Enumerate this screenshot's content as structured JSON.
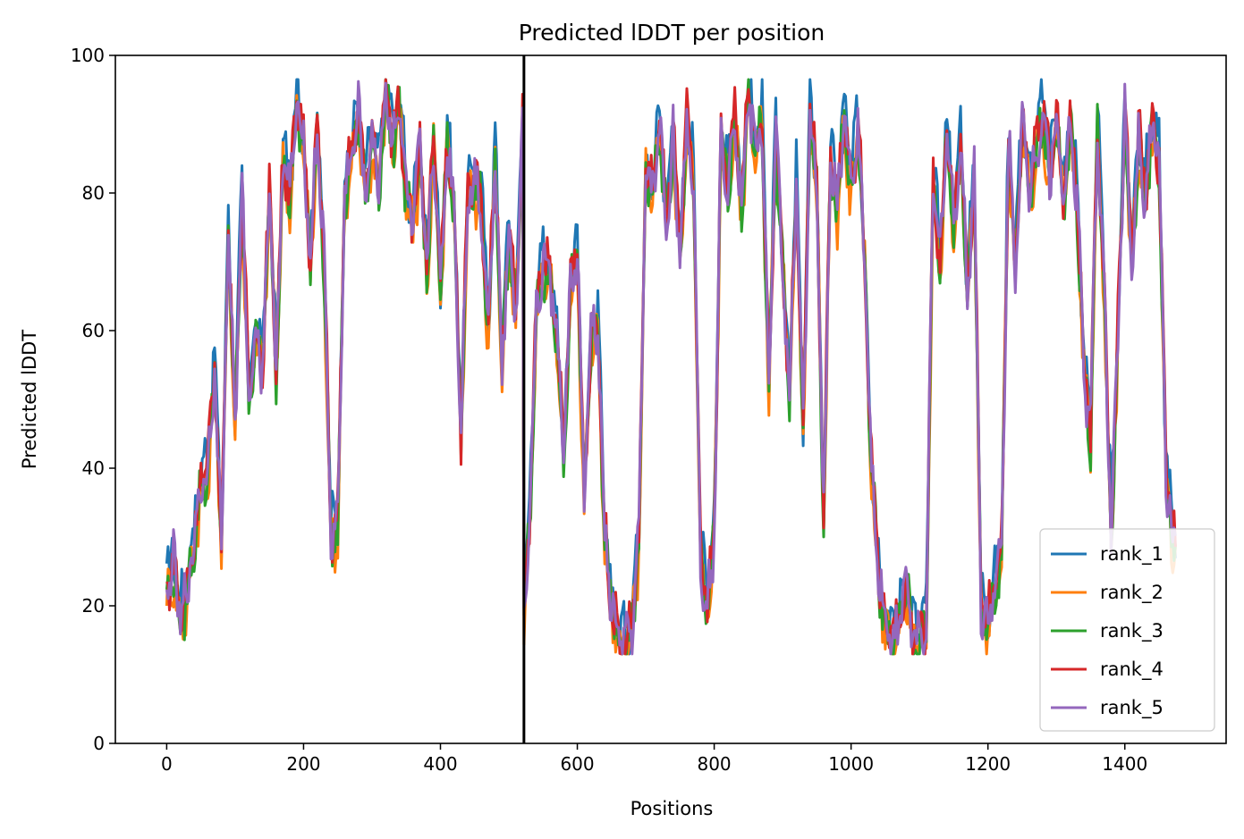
{
  "chart_data": {
    "type": "line",
    "title": "Predicted lDDT per position",
    "xlabel": "Positions",
    "ylabel": "Predicted lDDT",
    "xlim": [
      -75,
      1548
    ],
    "ylim": [
      0,
      100
    ],
    "xticks": [
      0,
      200,
      400,
      600,
      800,
      1000,
      1200,
      1400
    ],
    "yticks": [
      0,
      20,
      40,
      60,
      80,
      100
    ],
    "grid": false,
    "legend_position": "lower-right",
    "chain_boundary_x": 522,
    "series": [
      {
        "name": "rank_1",
        "color": "#1f77b4",
        "offset": 1.8
      },
      {
        "name": "rank_2",
        "color": "#ff7f0e",
        "offset": -1.6
      },
      {
        "name": "rank_3",
        "color": "#2ca02c",
        "offset": -0.8
      },
      {
        "name": "rank_4",
        "color": "#d62728",
        "offset": 0.6
      },
      {
        "name": "rank_5",
        "color": "#9467bd",
        "offset": 0.0
      }
    ],
    "profile_x": [
      0,
      10,
      20,
      30,
      40,
      50,
      60,
      70,
      80,
      90,
      100,
      110,
      120,
      130,
      140,
      150,
      160,
      170,
      180,
      190,
      200,
      210,
      220,
      230,
      240,
      250,
      260,
      270,
      280,
      290,
      300,
      310,
      320,
      330,
      340,
      350,
      360,
      370,
      380,
      390,
      400,
      410,
      420,
      430,
      440,
      450,
      460,
      470,
      480,
      490,
      500,
      510,
      520,
      522,
      530,
      540,
      550,
      560,
      570,
      580,
      590,
      600,
      610,
      620,
      630,
      640,
      650,
      660,
      670,
      680,
      690,
      700,
      710,
      720,
      730,
      740,
      750,
      760,
      770,
      780,
      790,
      800,
      810,
      820,
      830,
      840,
      850,
      860,
      870,
      880,
      890,
      900,
      910,
      920,
      930,
      940,
      950,
      960,
      970,
      980,
      990,
      1000,
      1010,
      1020,
      1030,
      1040,
      1050,
      1060,
      1070,
      1080,
      1090,
      1100,
      1110,
      1120,
      1130,
      1140,
      1150,
      1160,
      1170,
      1180,
      1190,
      1200,
      1210,
      1220,
      1230,
      1240,
      1250,
      1260,
      1270,
      1280,
      1290,
      1300,
      1310,
      1320,
      1330,
      1340,
      1350,
      1360,
      1370,
      1380,
      1390,
      1400,
      1410,
      1420,
      1430,
      1440,
      1450,
      1460,
      1470,
      1475
    ],
    "profile_y": [
      22,
      26,
      18,
      22,
      30,
      38,
      40,
      55,
      28,
      75,
      46,
      80,
      50,
      60,
      55,
      80,
      55,
      85,
      80,
      92,
      88,
      70,
      90,
      70,
      30,
      32,
      80,
      85,
      92,
      80,
      88,
      82,
      95,
      88,
      93,
      80,
      75,
      86,
      68,
      88,
      65,
      88,
      78,
      45,
      80,
      82,
      78,
      60,
      86,
      55,
      75,
      62,
      90,
      20,
      32,
      62,
      70,
      68,
      60,
      42,
      66,
      72,
      35,
      60,
      60,
      30,
      20,
      15,
      14,
      17,
      30,
      84,
      80,
      90,
      75,
      88,
      70,
      90,
      82,
      27,
      20,
      30,
      88,
      82,
      92,
      78,
      94,
      86,
      90,
      52,
      88,
      70,
      50,
      82,
      45,
      92,
      80,
      32,
      85,
      78,
      92,
      80,
      90,
      70,
      40,
      25,
      18,
      15,
      17,
      24,
      16,
      15,
      18,
      82,
      70,
      90,
      75,
      88,
      65,
      84,
      20,
      18,
      22,
      28,
      88,
      70,
      90,
      80,
      86,
      92,
      83,
      92,
      78,
      90,
      80,
      55,
      45,
      90,
      65,
      30,
      60,
      92,
      70,
      88,
      80,
      90,
      85,
      40,
      30,
      28
    ]
  }
}
